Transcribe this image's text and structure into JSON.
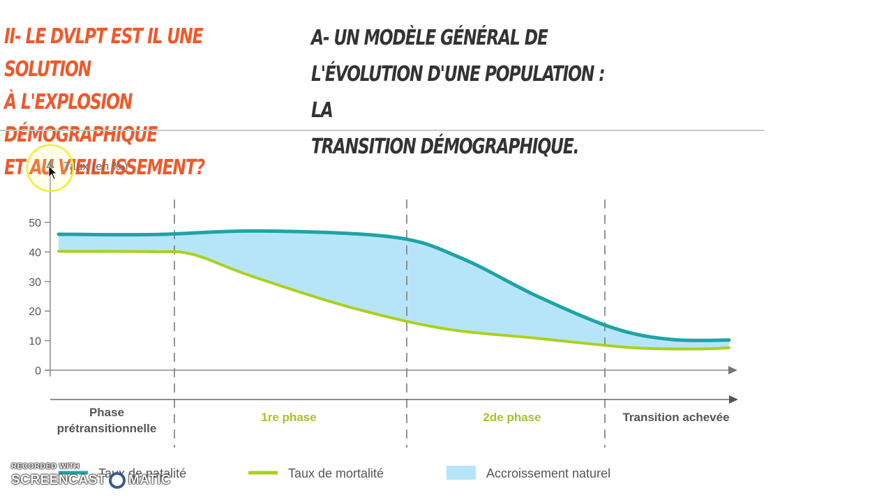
{
  "slide": {
    "title_left": "II- Le dvlpt est il une solution\nà l'explosion démographique\net au vieillissement?",
    "title_right": "A- Un modèle général de\nl'évolution d'une population : la\ntransition démographique."
  },
  "chart_data": {
    "type": "area",
    "ylabel": "Taux (en ‰)",
    "ylim": [
      0,
      50
    ],
    "yticks": [
      "0",
      "10",
      "20",
      "30",
      "40",
      "50"
    ],
    "series": [
      {
        "name": "Taux de natalité",
        "color": "#1fa3a3",
        "values": [
          [
            0,
            46
          ],
          [
            1,
            45.9
          ],
          [
            2.1,
            47.1
          ],
          [
            3.5,
            45
          ],
          [
            4.2,
            38
          ],
          [
            5,
            25
          ],
          [
            5.8,
            14.2
          ],
          [
            6.4,
            10.4
          ],
          [
            7,
            10.2
          ]
        ]
      },
      {
        "name": "Taux de mortalité",
        "color": "#a9d11c",
        "values": [
          [
            0,
            40.2
          ],
          [
            1,
            40.1
          ],
          [
            1.4,
            39.2
          ],
          [
            2,
            32
          ],
          [
            3,
            21.7
          ],
          [
            4,
            14.2
          ],
          [
            5,
            10.8
          ],
          [
            6,
            7.6
          ],
          [
            6.7,
            7.2
          ],
          [
            7,
            7.6
          ]
        ]
      }
    ],
    "fill": {
      "name": "Accroissement naturel",
      "color": "#b6e5f9"
    },
    "phases": [
      {
        "label": "Phase\nprétransitionnelle",
        "color": "#555555"
      },
      {
        "label": "1re phase",
        "color": "#a4c42a"
      },
      {
        "label": "2de phase",
        "color": "#a4c42a"
      },
      {
        "label": "Transition achevée",
        "color": "#555555"
      }
    ],
    "legend": [
      {
        "label": "Taux de natalité",
        "color": "#1fa3a3",
        "kind": "line"
      },
      {
        "label": "Taux de mortalité",
        "color": "#a9d11c",
        "kind": "line"
      },
      {
        "label": "Accroissement naturel",
        "color": "#b6e5f9",
        "kind": "box"
      }
    ]
  },
  "watermark": {
    "top": "RECORDED WITH",
    "left": "SCREENCAST",
    "right": "MATIC"
  }
}
